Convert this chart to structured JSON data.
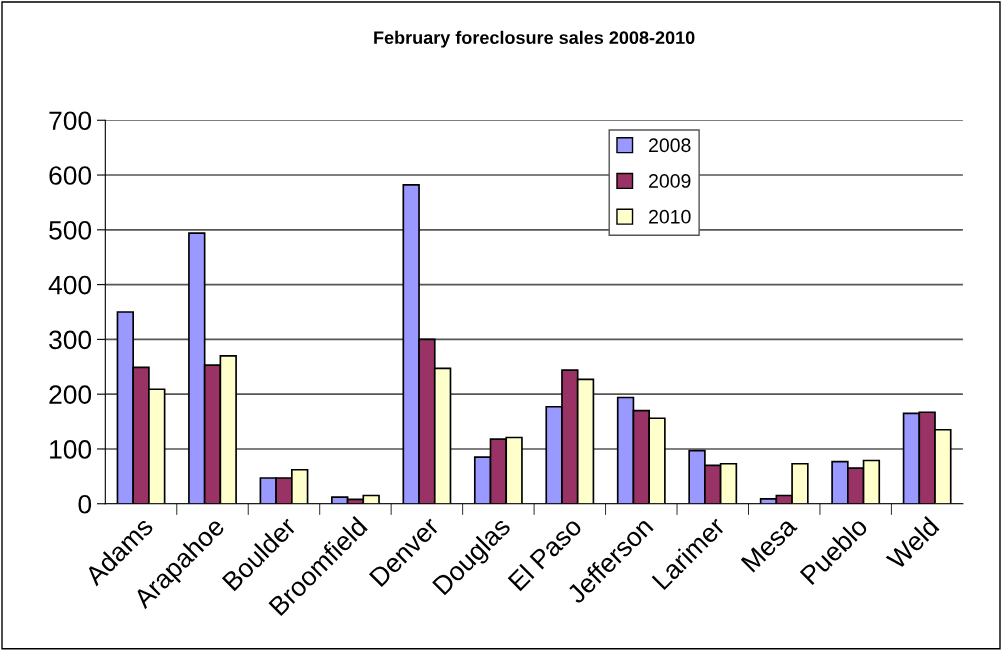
{
  "chart_data": {
    "type": "bar",
    "title": "February foreclosure sales 2008-2010",
    "categories": [
      "Adams",
      "Arapahoe",
      "Boulder",
      "Broomfield",
      "Denver",
      "Douglas",
      "El Paso",
      "Jefferson",
      "Larimer",
      "Mesa",
      "Pueblo",
      "Weld"
    ],
    "series": [
      {
        "name": "2008",
        "color": "#9999ff",
        "values": [
          350,
          494,
          47,
          12,
          582,
          85,
          177,
          194,
          97,
          9,
          77,
          165
        ]
      },
      {
        "name": "2009",
        "color": "#993366",
        "values": [
          249,
          253,
          47,
          8,
          300,
          118,
          244,
          170,
          70,
          15,
          65,
          167
        ]
      },
      {
        "name": "2010",
        "color": "#ffffcc",
        "values": [
          209,
          270,
          62,
          15,
          247,
          121,
          227,
          156,
          73,
          73,
          79,
          135
        ]
      }
    ],
    "ylim": [
      0,
      700
    ],
    "yticks": [
      0,
      100,
      200,
      300,
      400,
      500,
      600,
      700
    ],
    "grid": "y",
    "legend": "top"
  }
}
